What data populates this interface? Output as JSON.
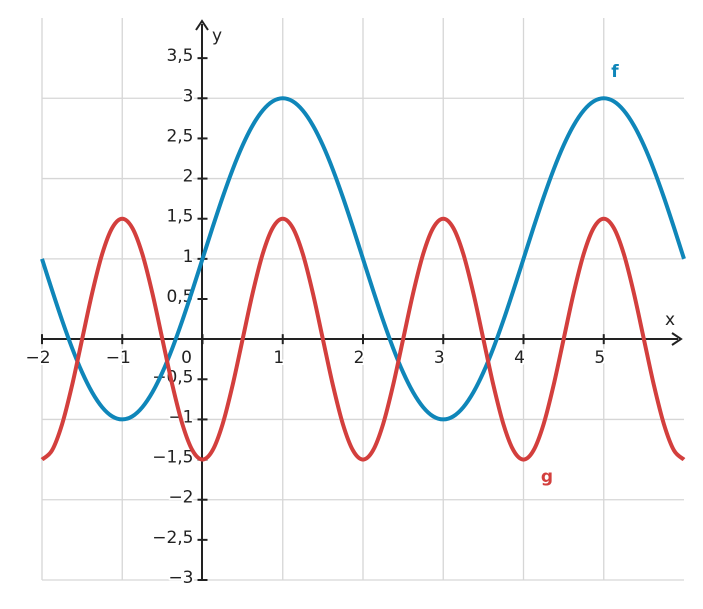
{
  "chart_data": {
    "type": "line",
    "x_label": "x",
    "y_label": "y",
    "x": [
      -2,
      -1.875,
      -1.75,
      -1.625,
      -1.5,
      -1.375,
      -1.25,
      -1.125,
      -1,
      -0.875,
      -0.75,
      -0.625,
      -0.5,
      -0.375,
      -0.25,
      -0.125,
      0,
      0.125,
      0.25,
      0.375,
      0.5,
      0.625,
      0.75,
      0.875,
      1,
      1.125,
      1.25,
      1.375,
      1.5,
      1.625,
      1.75,
      1.875,
      2,
      2.125,
      2.25,
      2.375,
      2.5,
      2.625,
      2.75,
      2.875,
      3,
      3.125,
      3.25,
      3.375,
      3.5,
      3.625,
      3.75,
      3.875,
      4,
      4.125,
      4.25,
      4.375,
      4.5,
      4.625,
      4.75,
      4.875,
      5,
      5.125,
      5.25,
      5.375,
      5.5,
      5.625,
      5.75,
      5.875,
      6
    ],
    "series": [
      {
        "name": "f",
        "color": "#0f86b9",
        "values": [
          1,
          0.61,
          0.235,
          -0.111,
          -0.414,
          -0.663,
          -0.848,
          -0.962,
          -1,
          -0.962,
          -0.848,
          -0.663,
          -0.414,
          -0.111,
          0.235,
          0.61,
          1,
          1.39,
          1.765,
          2.111,
          2.414,
          2.663,
          2.848,
          2.962,
          3,
          2.962,
          2.848,
          2.663,
          2.414,
          2.111,
          1.765,
          1.39,
          1,
          0.61,
          0.235,
          -0.111,
          -0.414,
          -0.663,
          -0.848,
          -0.962,
          -1,
          -0.962,
          -0.848,
          -0.663,
          -0.414,
          -0.111,
          0.235,
          0.61,
          1,
          1.39,
          1.765,
          2.111,
          2.414,
          2.663,
          2.848,
          2.962,
          3,
          2.962,
          2.848,
          2.663,
          2.414,
          2.111,
          1.765,
          1.39,
          1
        ]
      },
      {
        "name": "g",
        "color": "#d33f3d",
        "values": [
          -1.5,
          -1.386,
          -1.061,
          -0.574,
          0,
          0.574,
          1.061,
          1.386,
          1.5,
          1.386,
          1.061,
          0.574,
          0,
          -0.574,
          -1.061,
          -1.386,
          -1.5,
          -1.386,
          -1.061,
          -0.574,
          0,
          0.574,
          1.061,
          1.386,
          1.5,
          1.386,
          1.061,
          0.574,
          0,
          -0.574,
          -1.061,
          -1.386,
          -1.5,
          -1.386,
          -1.061,
          -0.574,
          0,
          0.574,
          1.061,
          1.386,
          1.5,
          1.386,
          1.061,
          0.574,
          0,
          -0.574,
          -1.061,
          -1.386,
          -1.5,
          -1.386,
          -1.061,
          -0.574,
          0,
          0.574,
          1.061,
          1.386,
          1.5,
          1.386,
          1.061,
          0.574,
          0,
          -0.574,
          -1.061,
          -1.386,
          -1.5
        ]
      }
    ],
    "xlim": [
      -2,
      6
    ],
    "ylim": [
      -3,
      4
    ],
    "xticks": [
      {
        "value": -2,
        "label": "−2"
      },
      {
        "value": -1,
        "label": "−1"
      },
      0,
      1,
      2,
      3,
      4,
      5
    ],
    "yticks": [
      {
        "value": -3,
        "label": "−3"
      },
      {
        "value": -2.5,
        "label": "−2,5"
      },
      {
        "value": -2,
        "label": "−2"
      },
      {
        "value": -1.5,
        "label": "−1,5"
      },
      {
        "value": -1,
        "label": "−1"
      },
      {
        "value": -0.5,
        "label": "−0,5"
      },
      {
        "value": 0.5,
        "label": "0,5"
      },
      1,
      {
        "value": 1.5,
        "label": "1,5"
      },
      2,
      {
        "value": 2.5,
        "label": "2,5"
      },
      3,
      {
        "value": 3.5,
        "label": "3,5"
      }
    ],
    "grid": true
  }
}
